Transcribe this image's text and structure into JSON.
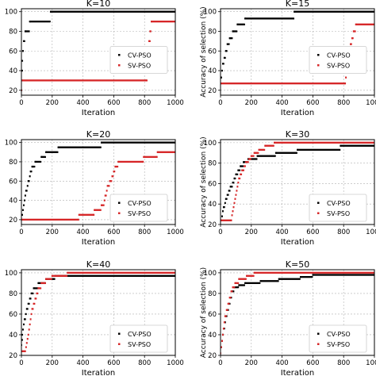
{
  "chart_data": [
    {
      "type": "scatter",
      "title": "K=10",
      "xlabel": "Iteration",
      "ylabel": "",
      "xlim": [
        0,
        1000
      ],
      "ylim": [
        15,
        103
      ],
      "xticks": [
        0,
        200,
        400,
        600,
        800,
        1000
      ],
      "yticks": [
        20,
        40,
        60,
        80,
        100
      ],
      "grid": true,
      "legend_position": "center-right",
      "series": [
        {
          "name": "CV-PSO",
          "color": "#000000",
          "steps": [
            [
              0,
              20
            ],
            [
              3,
              40
            ],
            [
              6,
              50
            ],
            [
              10,
              60
            ],
            [
              15,
              70
            ],
            [
              25,
              80
            ],
            [
              55,
              90
            ],
            [
              190,
              100
            ],
            [
              1000,
              100
            ]
          ]
        },
        {
          "name": "SV-PSO",
          "color": "#d62728",
          "steps": [
            [
              0,
              20
            ],
            [
              3,
              30
            ],
            [
              810,
              30
            ],
            [
              818,
              40
            ],
            [
              822,
              50
            ],
            [
              826,
              60
            ],
            [
              830,
              70
            ],
            [
              836,
              80
            ],
            [
              845,
              90
            ],
            [
              1000,
              90
            ]
          ]
        }
      ]
    },
    {
      "type": "scatter",
      "title": "K=15",
      "xlabel": "Iteration",
      "ylabel": "Accuracy of selection (%)",
      "xlim": [
        0,
        1000
      ],
      "ylim": [
        15,
        103
      ],
      "xticks": [
        0,
        200,
        400,
        600,
        800,
        1000
      ],
      "yticks": [
        20,
        40,
        60,
        80,
        100
      ],
      "grid": true,
      "legend_position": "center-right",
      "series": [
        {
          "name": "CV-PSO",
          "color": "#000000",
          "steps": [
            [
              0,
              27
            ],
            [
              5,
              33
            ],
            [
              10,
              40
            ],
            [
              15,
              47
            ],
            [
              25,
              53
            ],
            [
              35,
              60
            ],
            [
              45,
              67
            ],
            [
              60,
              73
            ],
            [
              80,
              80
            ],
            [
              110,
              87
            ],
            [
              160,
              93
            ],
            [
              480,
              100
            ],
            [
              1000,
              100
            ]
          ]
        },
        {
          "name": "SV-PSO",
          "color": "#d62728",
          "steps": [
            [
              0,
              27
            ],
            [
              810,
              27
            ],
            [
              815,
              33
            ],
            [
              820,
              40
            ],
            [
              826,
              47
            ],
            [
              832,
              53
            ],
            [
              838,
              60
            ],
            [
              845,
              67
            ],
            [
              855,
              73
            ],
            [
              865,
              80
            ],
            [
              880,
              87
            ],
            [
              1000,
              87
            ]
          ]
        }
      ]
    },
    {
      "type": "scatter",
      "title": "K=20",
      "xlabel": "Iteration",
      "ylabel": "",
      "xlim": [
        0,
        1000
      ],
      "ylim": [
        15,
        103
      ],
      "xticks": [
        0,
        200,
        400,
        600,
        800,
        1000
      ],
      "yticks": [
        20,
        40,
        60,
        80,
        100
      ],
      "grid": true,
      "legend_position": "lower-right",
      "series": [
        {
          "name": "CV-PSO",
          "color": "#000000",
          "steps": [
            [
              0,
              20
            ],
            [
              5,
              25
            ],
            [
              10,
              30
            ],
            [
              15,
              35
            ],
            [
              20,
              40
            ],
            [
              25,
              45
            ],
            [
              30,
              50
            ],
            [
              40,
              55
            ],
            [
              45,
              60
            ],
            [
              55,
              65
            ],
            [
              60,
              70
            ],
            [
              70,
              75
            ],
            [
              90,
              80
            ],
            [
              130,
              85
            ],
            [
              160,
              90
            ],
            [
              240,
              95
            ],
            [
              520,
              100
            ],
            [
              1000,
              100
            ]
          ]
        },
        {
          "name": "SV-PSO",
          "color": "#d62728",
          "steps": [
            [
              0,
              20
            ],
            [
              370,
              20
            ],
            [
              375,
              25
            ],
            [
              470,
              25
            ],
            [
              475,
              30
            ],
            [
              520,
              35
            ],
            [
              540,
              40
            ],
            [
              545,
              45
            ],
            [
              555,
              50
            ],
            [
              560,
              55
            ],
            [
              575,
              60
            ],
            [
              590,
              65
            ],
            [
              600,
              70
            ],
            [
              610,
              75
            ],
            [
              630,
              80
            ],
            [
              790,
              80
            ],
            [
              795,
              85
            ],
            [
              880,
              85
            ],
            [
              885,
              90
            ],
            [
              1000,
              90
            ]
          ]
        }
      ]
    },
    {
      "type": "scatter",
      "title": "K=30",
      "xlabel": "Iteration",
      "ylabel": "Accuracy of selection (%)",
      "xlim": [
        0,
        1000
      ],
      "ylim": [
        20,
        103
      ],
      "xticks": [
        0,
        200,
        400,
        600,
        800,
        1000
      ],
      "yticks": [
        20,
        40,
        60,
        80,
        100
      ],
      "grid": true,
      "legend_position": "lower-right",
      "series": [
        {
          "name": "CV-PSO",
          "color": "#000000",
          "steps": [
            [
              0,
              24
            ],
            [
              10,
              28
            ],
            [
              15,
              33
            ],
            [
              20,
              37
            ],
            [
              30,
              41
            ],
            [
              35,
              45
            ],
            [
              45,
              49
            ],
            [
              55,
              53
            ],
            [
              65,
              57
            ],
            [
              80,
              61
            ],
            [
              90,
              65
            ],
            [
              100,
              69
            ],
            [
              115,
              73
            ],
            [
              130,
              77
            ],
            [
              150,
              81
            ],
            [
              180,
              84
            ],
            [
              240,
              87
            ],
            [
              360,
              90
            ],
            [
              500,
              93
            ],
            [
              780,
              97
            ],
            [
              1000,
              97
            ]
          ]
        },
        {
          "name": "SV-PSO",
          "color": "#d62728",
          "steps": [
            [
              0,
              24
            ],
            [
              70,
              24
            ],
            [
              75,
              29
            ],
            [
              80,
              33
            ],
            [
              85,
              37
            ],
            [
              90,
              41
            ],
            [
              95,
              45
            ],
            [
              100,
              49
            ],
            [
              105,
              53
            ],
            [
              110,
              57
            ],
            [
              115,
              61
            ],
            [
              120,
              65
            ],
            [
              130,
              69
            ],
            [
              140,
              73
            ],
            [
              155,
              77
            ],
            [
              165,
              81
            ],
            [
              185,
              84
            ],
            [
              200,
              87
            ],
            [
              220,
              90
            ],
            [
              250,
              93
            ],
            [
              290,
              97
            ],
            [
              350,
              100
            ],
            [
              1000,
              100
            ]
          ]
        }
      ]
    },
    {
      "type": "scatter",
      "title": "K=40",
      "xlabel": "Iteration",
      "ylabel": "",
      "xlim": [
        0,
        1000
      ],
      "ylim": [
        20,
        103
      ],
      "xticks": [
        0,
        200,
        400,
        600,
        800,
        1000
      ],
      "yticks": [
        20,
        40,
        60,
        80,
        100
      ],
      "grid": true,
      "legend_position": "lower-right",
      "series": [
        {
          "name": "CV-PSO",
          "color": "#000000",
          "steps": [
            [
              0,
              30
            ],
            [
              3,
              35
            ],
            [
              6,
              40
            ],
            [
              10,
              45
            ],
            [
              15,
              50
            ],
            [
              20,
              55
            ],
            [
              28,
              60
            ],
            [
              35,
              65
            ],
            [
              45,
              70
            ],
            [
              55,
              75
            ],
            [
              65,
              80
            ],
            [
              80,
              85
            ],
            [
              110,
              90
            ],
            [
              160,
              94
            ],
            [
              220,
              97
            ],
            [
              1000,
              97
            ]
          ]
        },
        {
          "name": "SV-PSO",
          "color": "#d62728",
          "steps": [
            [
              0,
              24
            ],
            [
              30,
              28
            ],
            [
              35,
              32
            ],
            [
              40,
              36
            ],
            [
              45,
              40
            ],
            [
              50,
              45
            ],
            [
              55,
              50
            ],
            [
              60,
              55
            ],
            [
              65,
              60
            ],
            [
              70,
              65
            ],
            [
              80,
              70
            ],
            [
              90,
              75
            ],
            [
              100,
              80
            ],
            [
              110,
              85
            ],
            [
              130,
              90
            ],
            [
              160,
              94
            ],
            [
              200,
              97
            ],
            [
              300,
              100
            ],
            [
              1000,
              100
            ]
          ]
        }
      ]
    },
    {
      "type": "scatter",
      "title": "K=50",
      "xlabel": "Iteration",
      "ylabel": "Accuracy of selection (%)",
      "xlim": [
        0,
        1000
      ],
      "ylim": [
        20,
        103
      ],
      "xticks": [
        0,
        200,
        400,
        600,
        800,
        1000
      ],
      "yticks": [
        20,
        40,
        60,
        80,
        100
      ],
      "grid": true,
      "legend_position": "lower-right",
      "series": [
        {
          "name": "CV-PSO",
          "color": "#000000",
          "steps": [
            [
              0,
              28
            ],
            [
              10,
              34
            ],
            [
              15,
              40
            ],
            [
              20,
              46
            ],
            [
              30,
              52
            ],
            [
              35,
              58
            ],
            [
              45,
              64
            ],
            [
              55,
              70
            ],
            [
              65,
              76
            ],
            [
              75,
              82
            ],
            [
              90,
              86
            ],
            [
              120,
              88
            ],
            [
              160,
              90
            ],
            [
              260,
              92
            ],
            [
              380,
              94
            ],
            [
              520,
              96
            ],
            [
              600,
              98
            ],
            [
              1000,
              98
            ]
          ]
        },
        {
          "name": "SV-PSO",
          "color": "#d62728",
          "steps": [
            [
              0,
              22
            ],
            [
              5,
              28
            ],
            [
              10,
              34
            ],
            [
              15,
              40
            ],
            [
              20,
              46
            ],
            [
              25,
              52
            ],
            [
              30,
              58
            ],
            [
              40,
              64
            ],
            [
              50,
              70
            ],
            [
              60,
              76
            ],
            [
              70,
              82
            ],
            [
              80,
              86
            ],
            [
              95,
              90
            ],
            [
              120,
              94
            ],
            [
              170,
              97
            ],
            [
              220,
              100
            ],
            [
              1000,
              100
            ]
          ]
        }
      ]
    }
  ]
}
